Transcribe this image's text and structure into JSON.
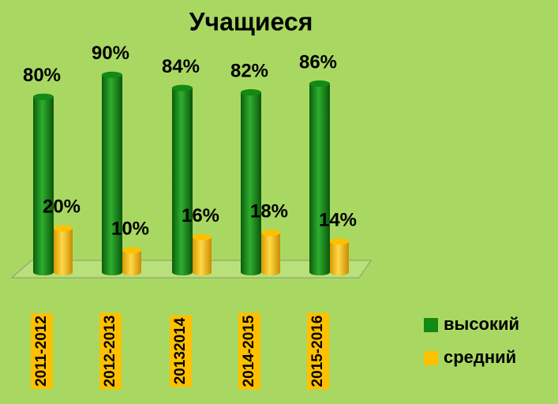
{
  "chart_data": {
    "type": "bar",
    "title": "Учащиеся",
    "categories": [
      "2011-2012",
      "2012-2013",
      "20132014",
      "2014-2015",
      "2015-2016"
    ],
    "series": [
      {
        "name": "высокий",
        "color": "#138a13",
        "values": [
          80,
          90,
          84,
          82,
          86
        ],
        "value_labels": [
          "80%",
          "90%",
          "84%",
          "82%",
          "86%"
        ]
      },
      {
        "name": "средний",
        "color": "#ffc000",
        "values": [
          20,
          10,
          16,
          18,
          14
        ],
        "value_labels": [
          "20%",
          "10%",
          "16%",
          "18%",
          "14%"
        ]
      }
    ],
    "legend": "right"
  }
}
